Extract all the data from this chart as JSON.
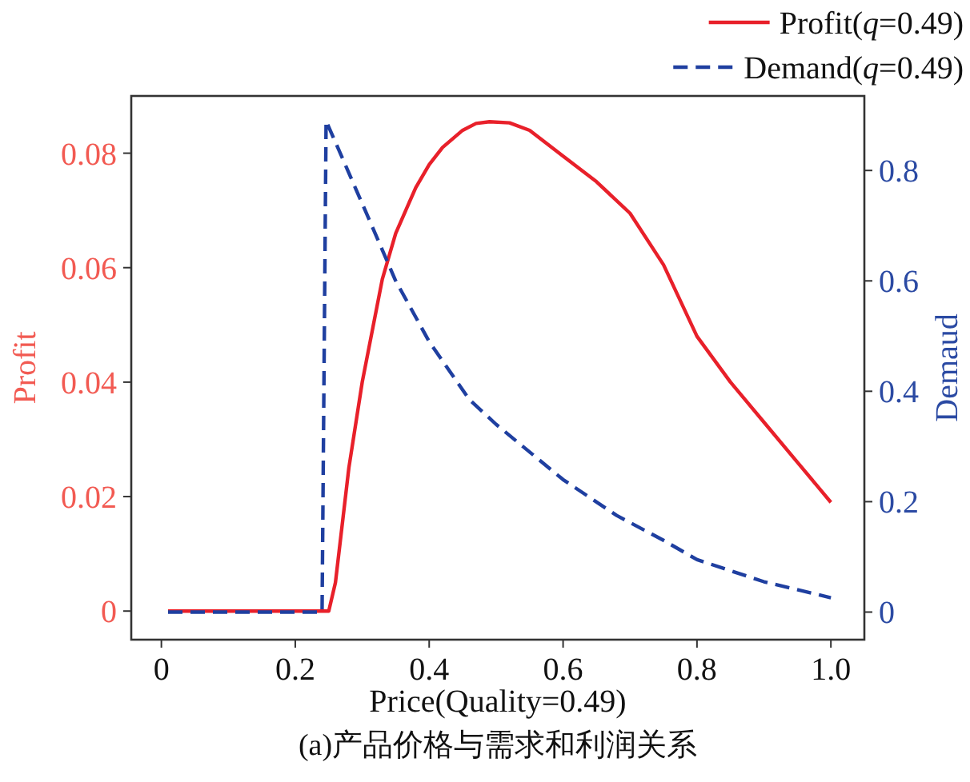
{
  "chart_data": {
    "type": "line",
    "xlabel": "Price(Quality=0.49)",
    "ylabel": "Profit",
    "y2label": "Demaud",
    "annotations": [
      "(a)产品价格与需求和利润关系"
    ],
    "xlim": [
      -0.045,
      1.05
    ],
    "xticks": [
      0,
      0.2,
      0.4,
      0.6,
      0.8,
      {
        "value": 1,
        "label": "1.0"
      }
    ],
    "ylim": [
      -0.005,
      0.09
    ],
    "yticks": [
      0,
      0.02,
      0.04,
      0.06,
      0.08
    ],
    "y2lim": [
      -0.05,
      0.935
    ],
    "y2ticks": [
      0,
      0.2,
      0.4,
      0.6,
      0.8
    ],
    "legend": "top right",
    "grid": false,
    "series": [
      {
        "name": "Profit(q=0.49)",
        "color": "#e8202a",
        "line_style": "solid",
        "x": [
          0.01,
          0.24,
          0.25,
          0.26,
          0.28,
          0.3,
          0.33,
          0.35,
          0.38,
          0.4,
          0.42,
          0.45,
          0.47,
          0.49,
          0.52,
          0.55,
          0.6,
          0.65,
          0.7,
          0.75,
          0.8,
          0.85,
          0.9,
          0.95,
          1.0
        ],
        "values": [
          0,
          0,
          0,
          0.005,
          0.025,
          0.04,
          0.058,
          0.066,
          0.074,
          0.078,
          0.081,
          0.084,
          0.0852,
          0.0855,
          0.0853,
          0.084,
          0.0795,
          0.075,
          0.0695,
          0.0605,
          0.048,
          0.04,
          0.033,
          0.026,
          0.019
        ]
      },
      {
        "name": "Demand(q=0.49)",
        "color": "#1f3fa0",
        "line_style": "dashed",
        "axis": "y2",
        "x": [
          0.01,
          0.24,
          0.246,
          0.3,
          0.35,
          0.4,
          0.46,
          0.5,
          0.54,
          0.6,
          0.68,
          0.75,
          0.8,
          0.9,
          1.0
        ],
        "values": [
          0,
          0,
          0.89,
          0.74,
          0.6,
          0.49,
          0.385,
          0.34,
          0.3,
          0.24,
          0.175,
          0.13,
          0.095,
          0.055,
          0.026
        ]
      }
    ]
  }
}
